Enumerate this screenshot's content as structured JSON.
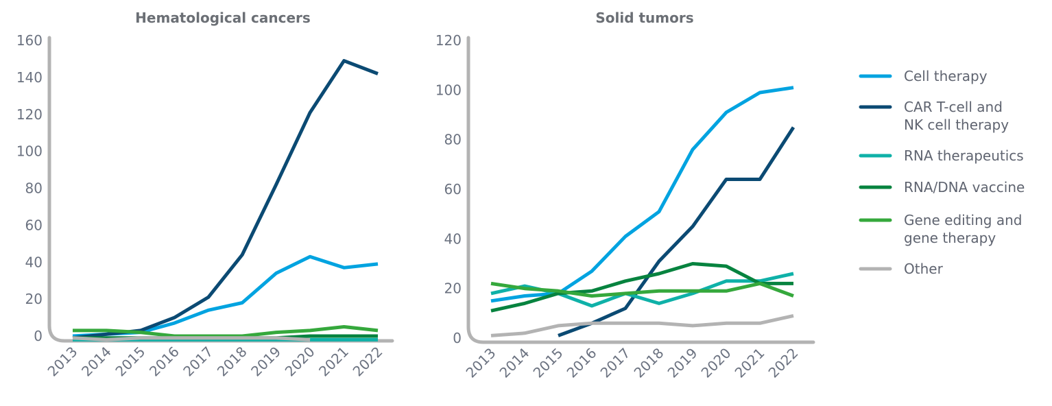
{
  "colors": {
    "axis": "#b3b3b3",
    "series": [
      "#00a3e0",
      "#0b4a73",
      "#0fb1a8",
      "#07833f",
      "#35a83c",
      "#b3b3b3"
    ]
  },
  "legend": {
    "items": [
      {
        "lines": [
          "Cell therapy"
        ],
        "color": "#00a3e0"
      },
      {
        "lines": [
          "CAR T-cell and",
          "NK cell therapy"
        ],
        "color": "#0b4a73"
      },
      {
        "lines": [
          "RNA therapeutics"
        ],
        "color": "#0fb1a8"
      },
      {
        "lines": [
          "RNA/DNA vaccine"
        ],
        "color": "#07833f"
      },
      {
        "lines": [
          "Gene editing and",
          "gene therapy"
        ],
        "color": "#35a83c"
      },
      {
        "lines": [
          "Other"
        ],
        "color": "#b3b3b3"
      }
    ],
    "placement": "right"
  },
  "chart_data": [
    {
      "type": "line",
      "title": "Hematological cancers",
      "xlabel": "",
      "ylabel": "",
      "x": [
        "2013",
        "2014",
        "2015",
        "2016",
        "2017",
        "2018",
        "2019",
        "2020",
        "2021",
        "2022"
      ],
      "ylim": [
        0,
        160
      ],
      "yticks": [
        0,
        20,
        40,
        60,
        80,
        100,
        120,
        140,
        160
      ],
      "grid": false,
      "series": [
        {
          "name": "Cell therapy",
          "color": "#00a3e0",
          "values": [
            0,
            1,
            2,
            7,
            14,
            18,
            34,
            43,
            37,
            39
          ]
        },
        {
          "name": "CAR T-cell and NK cell therapy",
          "color": "#0b4a73",
          "values": [
            -1,
            1,
            3,
            10,
            21,
            44,
            82,
            121,
            149,
            142
          ]
        },
        {
          "name": "RNA therapeutics",
          "color": "#0fb1a8",
          "values": [
            -2,
            -2,
            -2,
            -2,
            -2,
            -2,
            -2,
            -2,
            -2,
            -2
          ]
        },
        {
          "name": "RNA/DNA vaccine",
          "color": "#07833f",
          "values": [
            -1,
            -1,
            -1,
            -1,
            -1,
            -1,
            -1,
            0,
            0,
            0
          ]
        },
        {
          "name": "Gene editing and gene therapy",
          "color": "#35a83c",
          "values": [
            3,
            3,
            2,
            0,
            0,
            0,
            2,
            3,
            5,
            3
          ]
        },
        {
          "name": "Other",
          "color": "#b3b3b3",
          "values": [
            -1,
            -2,
            -1,
            -1,
            -1,
            -1,
            -1,
            -2,
            null,
            null
          ]
        }
      ]
    },
    {
      "type": "line",
      "title": "Solid tumors",
      "xlabel": "",
      "ylabel": "",
      "x": [
        "2013",
        "2014",
        "2015",
        "2016",
        "2017",
        "2018",
        "2019",
        "2020",
        "2021",
        "2022"
      ],
      "ylim": [
        0,
        120
      ],
      "yticks": [
        0,
        20,
        40,
        60,
        80,
        100,
        120
      ],
      "grid": false,
      "series": [
        {
          "name": "Cell therapy",
          "color": "#00a3e0",
          "values": [
            15,
            17,
            18,
            27,
            41,
            51,
            76,
            91,
            99,
            101
          ]
        },
        {
          "name": "CAR T-cell and NK cell therapy",
          "color": "#0b4a73",
          "values": [
            null,
            null,
            1,
            6,
            12,
            31,
            45,
            64,
            64,
            85
          ]
        },
        {
          "name": "RNA therapeutics",
          "color": "#0fb1a8",
          "values": [
            18,
            21,
            18,
            13,
            18,
            14,
            18,
            23,
            23,
            26
          ]
        },
        {
          "name": "RNA/DNA vaccine",
          "color": "#07833f",
          "values": [
            11,
            14,
            18,
            19,
            23,
            26,
            30,
            29,
            22,
            22
          ]
        },
        {
          "name": "Gene editing and gene therapy",
          "color": "#35a83c",
          "values": [
            22,
            20,
            19,
            17,
            18,
            19,
            19,
            19,
            22,
            17
          ]
        },
        {
          "name": "Other",
          "color": "#b3b3b3",
          "values": [
            1,
            2,
            5,
            6,
            6,
            6,
            5,
            6,
            6,
            9
          ]
        }
      ]
    }
  ]
}
